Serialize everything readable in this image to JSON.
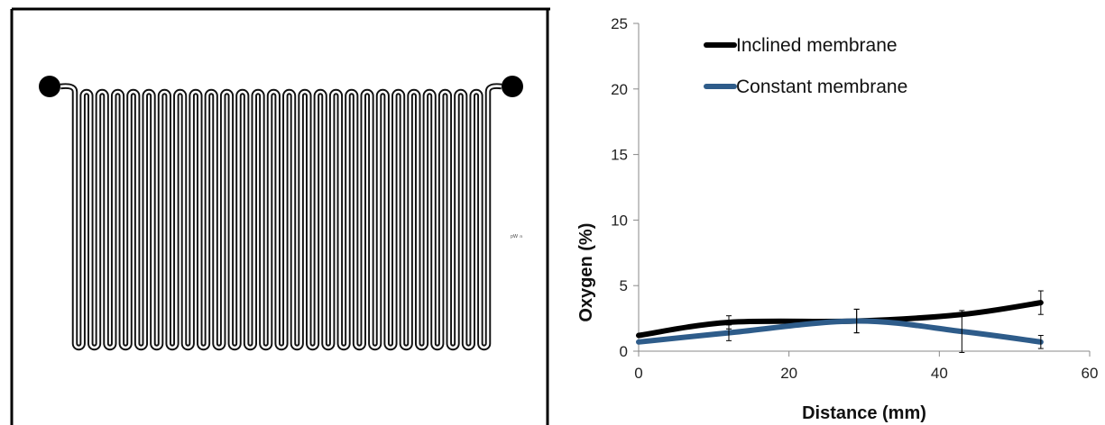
{
  "figure": {
    "left_panel": {
      "channel_color": "#111111",
      "inlet_outlet_color": "#000000",
      "small_annotation": "ᵖᵂ ⁿ"
    },
    "right_panel": {
      "chart_data": {
        "type": "line",
        "title": "",
        "xlabel": "Distance (mm)",
        "ylabel": "Oxygen (%)",
        "xlim": [
          0,
          60
        ],
        "ylim": [
          0,
          25
        ],
        "xticks": [
          0,
          20,
          40,
          60
        ],
        "yticks": [
          0,
          5,
          10,
          15,
          20,
          25
        ],
        "grid": false,
        "legend_position": "top-left",
        "series": [
          {
            "name": "Inclined membrane",
            "color": "#000000",
            "x": [
              0,
              12,
              29,
              43,
              53.5
            ],
            "y": [
              1.2,
              2.2,
              2.3,
              2.8,
              3.7
            ],
            "error": [
              null,
              0.5,
              0.9,
              null,
              0.9
            ]
          },
          {
            "name": "Constant membrane",
            "color": "#2E5C8A",
            "x": [
              0,
              12,
              29,
              43,
              53.5
            ],
            "y": [
              0.7,
              1.4,
              2.3,
              1.5,
              0.7
            ],
            "error": [
              null,
              0.6,
              0.9,
              1.6,
              0.5
            ]
          }
        ]
      }
    }
  }
}
